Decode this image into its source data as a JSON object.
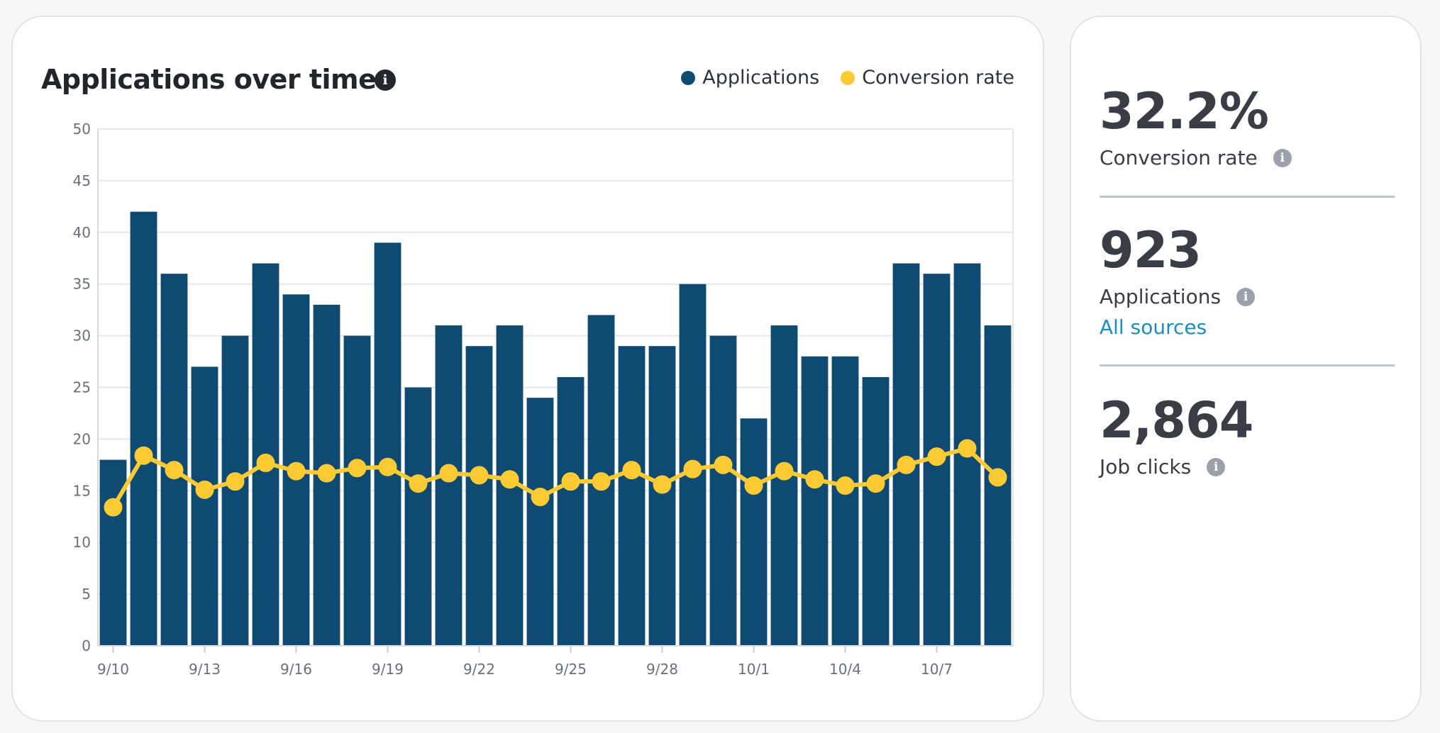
{
  "chart_card": {
    "title": "Applications over time",
    "info_glyph": "i"
  },
  "chart_data": {
    "type": "bar",
    "title": "Applications over time",
    "xlabel": "",
    "ylabel": "",
    "ylim": [
      0,
      50
    ],
    "yticks": [
      0,
      5,
      10,
      15,
      20,
      25,
      30,
      35,
      40,
      45,
      50
    ],
    "categories": [
      "9/10",
      "9/11",
      "9/12",
      "9/13",
      "9/14",
      "9/15",
      "9/16",
      "9/17",
      "9/18",
      "9/19",
      "9/20",
      "9/21",
      "9/22",
      "9/23",
      "9/24",
      "9/25",
      "9/26",
      "9/27",
      "9/28",
      "9/29",
      "9/30",
      "10/1",
      "10/2",
      "10/3",
      "10/4",
      "10/5",
      "10/6",
      "10/7",
      "10/8",
      "10/9"
    ],
    "xtick_labels": [
      "9/10",
      "9/13",
      "9/16",
      "9/19",
      "9/22",
      "9/25",
      "9/28",
      "10/1",
      "10/4",
      "10/7"
    ],
    "series": [
      {
        "name": "Applications",
        "type": "bar",
        "color": "#0f4a73",
        "values": [
          18,
          42,
          36,
          27,
          30,
          37,
          34,
          33,
          30,
          39,
          25,
          31,
          29,
          31,
          24,
          26,
          32,
          29,
          29,
          35,
          30,
          22,
          31,
          28,
          28,
          26,
          37,
          36,
          37,
          31
        ]
      },
      {
        "name": "Conversion rate",
        "type": "line",
        "color": "#fccb33",
        "values": [
          13.4,
          18.4,
          17.0,
          15.1,
          15.9,
          17.7,
          16.9,
          16.7,
          17.2,
          17.3,
          15.7,
          16.7,
          16.5,
          16.1,
          14.4,
          15.9,
          15.9,
          17.0,
          15.6,
          17.1,
          17.5,
          15.5,
          16.9,
          16.1,
          15.5,
          15.7,
          17.5,
          18.3,
          19.1,
          16.3
        ]
      }
    ],
    "legend": [
      "Applications",
      "Conversion rate"
    ],
    "legend_position": "top-right",
    "grid": true
  },
  "stats": {
    "conversion_value": "32.2%",
    "conversion_label": "Conversion rate",
    "applications_value": "923",
    "applications_label": "Applications",
    "applications_link": "All sources",
    "clicks_value": "2,864",
    "clicks_label": "Job clicks",
    "info_glyph": "i"
  },
  "colors": {
    "bar": "#0f4a73",
    "line": "#fccb33",
    "grid": "#e4e6ea",
    "link": "#1a8ec0"
  }
}
